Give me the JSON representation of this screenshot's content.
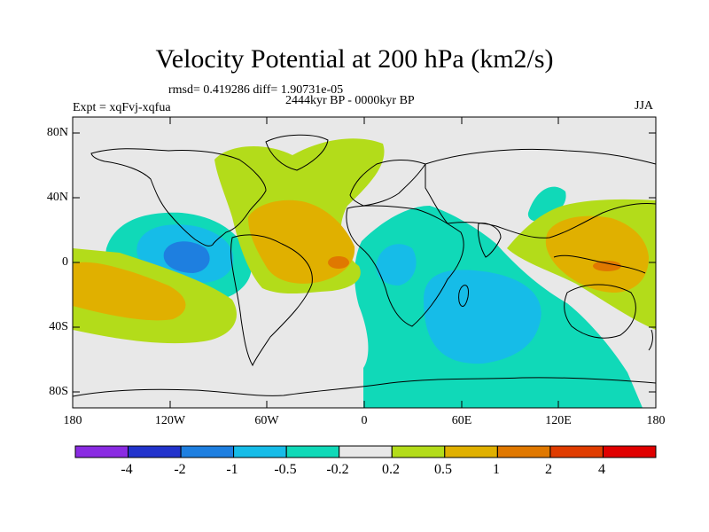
{
  "title": "Velocity Potential at 200 hPa (km2/s)",
  "stats": "rmsd= 0.419286 diff= 1.90731e-05",
  "period": "2444kyr BP - 0000kyr BP",
  "experiment": "Expt = xqFvj-xqfua",
  "season": "JJA",
  "lat_labels": [
    "80N",
    "40N",
    "0",
    "40S",
    "80S"
  ],
  "lon_labels": [
    "180",
    "120W",
    "60W",
    "0",
    "60E",
    "120E",
    "180"
  ],
  "colorbar": {
    "colors": [
      "#8a2be2",
      "#2233cc",
      "#1e7fe0",
      "#16bce8",
      "#10d9b8",
      "#e8e8e8",
      "#b3dc1a",
      "#e0b000",
      "#e07800",
      "#e03c00",
      "#e00000"
    ],
    "labels": [
      "-4",
      "-2",
      "-1",
      "-0.5",
      "-0.2",
      "0.2",
      "0.5",
      "1",
      "2",
      "4"
    ]
  },
  "map": {
    "background": "#e8e8e8",
    "colors": {
      "cyan": "#10d9b8",
      "lightblue": "#16bce8",
      "blue": "#1e7fe0",
      "green": "#b3dc1a",
      "yellow": "#e0b000",
      "orange": "#e07800"
    }
  }
}
